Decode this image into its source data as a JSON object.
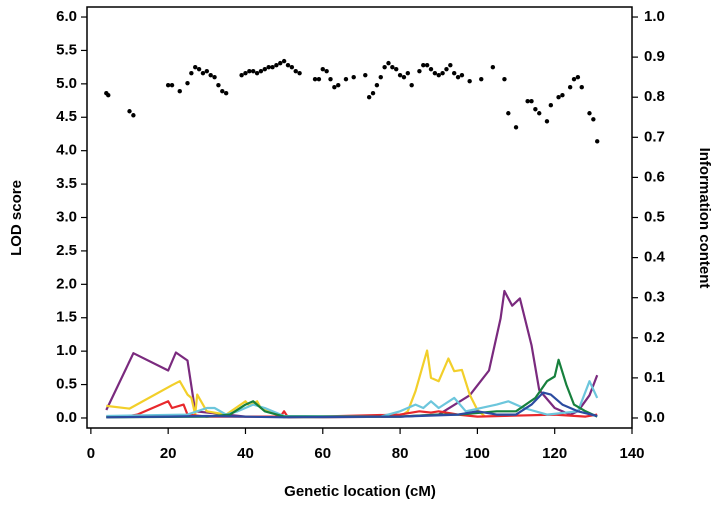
{
  "chart_data": {
    "type": "line",
    "xlabel": "Genetic location (cM)",
    "ylabel": "LOD score",
    "y2label": "Information content",
    "xlim": [
      -1,
      140
    ],
    "ylim": [
      -0.15,
      6.15
    ],
    "y2lim": [
      -0.025,
      1.025
    ],
    "xticks": [
      0,
      20,
      40,
      60,
      80,
      100,
      120,
      140
    ],
    "yticks": [
      {
        "value": 0,
        "label": "0.0"
      },
      {
        "value": 0.5,
        "label": "0.5"
      },
      {
        "value": 1,
        "label": "1.0"
      },
      {
        "value": 1.5,
        "label": "1.5"
      },
      {
        "value": 2,
        "label": "2.0"
      },
      {
        "value": 2.5,
        "label": "2.5"
      },
      {
        "value": 3,
        "label": "3.0"
      },
      {
        "value": 3.5,
        "label": "3.5"
      },
      {
        "value": 4,
        "label": "4.0"
      },
      {
        "value": 4.5,
        "label": "4.5"
      },
      {
        "value": 5,
        "label": "5.0"
      },
      {
        "value": 5.5,
        "label": "5.5"
      },
      {
        "value": 6,
        "label": "6.0"
      }
    ],
    "y2ticks": [
      {
        "value": 0,
        "label": "0.0"
      },
      0.1,
      0.2,
      0.3,
      0.4,
      0.5,
      0.6,
      0.7,
      0.8,
      0.9,
      {
        "value": 1,
        "label": "1.0"
      }
    ],
    "series": [
      {
        "color": "#7a2a7e",
        "x": [
          4,
          11,
          20,
          22,
          25,
          27,
          40,
          60,
          80,
          90,
          98,
          103,
          106,
          107,
          109,
          111,
          114,
          116,
          120,
          124,
          126,
          129,
          131
        ],
        "values": [
          0.12,
          0.97,
          0.71,
          0.98,
          0.86,
          0.1,
          0.02,
          0.01,
          0.02,
          0.05,
          0.34,
          0.71,
          1.49,
          1.9,
          1.68,
          1.79,
          1.09,
          0.42,
          0.15,
          0.05,
          0.1,
          0.34,
          0.64
        ]
      },
      {
        "color": "#f2cf2a",
        "x": [
          4,
          10,
          21,
          23,
          25,
          26,
          27,
          27.5,
          30,
          35,
          40,
          41,
          43,
          44,
          46,
          50,
          80,
          82,
          84,
          87,
          88,
          90,
          92.5,
          94,
          96,
          98,
          100,
          102
        ],
        "values": [
          0.18,
          0.14,
          0.49,
          0.55,
          0.35,
          0.3,
          0.05,
          0.35,
          0.1,
          0.05,
          0.25,
          0.18,
          0.25,
          0.15,
          0.1,
          0.01,
          0.02,
          0.1,
          0.4,
          1.01,
          0.6,
          0.55,
          0.89,
          0.7,
          0.72,
          0.35,
          0.12,
          0.02
        ]
      },
      {
        "color": "#e8282c",
        "x": [
          4,
          10,
          12,
          20,
          21,
          24,
          25,
          30,
          49,
          50,
          51,
          80,
          85,
          88,
          90,
          95,
          100,
          120,
          128,
          131
        ],
        "values": [
          0.02,
          0.03,
          0.05,
          0.25,
          0.15,
          0.2,
          0.05,
          0.02,
          0.02,
          0.1,
          0.01,
          0.05,
          0.1,
          0.08,
          0.1,
          0.05,
          0.02,
          0.05,
          0.02,
          0.05
        ]
      },
      {
        "color": "#6cc6dc",
        "x": [
          4,
          25,
          30,
          32,
          35,
          38,
          42,
          45,
          50,
          75,
          80,
          84,
          86,
          88,
          90,
          94,
          97,
          105,
          108,
          112,
          118,
          126,
          129,
          131
        ],
        "values": [
          0.03,
          0.05,
          0.15,
          0.15,
          0.05,
          0.1,
          0.2,
          0.15,
          0.03,
          0.02,
          0.1,
          0.2,
          0.15,
          0.25,
          0.15,
          0.3,
          0.1,
          0.2,
          0.25,
          0.15,
          0.05,
          0.1,
          0.55,
          0.3
        ]
      },
      {
        "color": "#17803d",
        "x": [
          4,
          30,
          36,
          40,
          42,
          45,
          50,
          80,
          90,
          95,
          105,
          110,
          115,
          118,
          120,
          121,
          123,
          125,
          128,
          131
        ],
        "values": [
          0.01,
          0.02,
          0.05,
          0.2,
          0.25,
          0.1,
          0.02,
          0.02,
          0.05,
          0.05,
          0.1,
          0.1,
          0.3,
          0.55,
          0.62,
          0.87,
          0.5,
          0.2,
          0.1,
          0.02
        ]
      },
      {
        "color": "#2b4ba0",
        "x": [
          4,
          20,
          30,
          50,
          80,
          95,
          100,
          105,
          110,
          114,
          117,
          119,
          122,
          126,
          131
        ],
        "values": [
          0.01,
          0.02,
          0.03,
          0.01,
          0.02,
          0.05,
          0.1,
          0.05,
          0.05,
          0.2,
          0.38,
          0.35,
          0.2,
          0.1,
          0.03
        ]
      },
      {
        "type": "scatter",
        "axis": "y2",
        "color": "#000000",
        "x": [
          4,
          4.5,
          10,
          11,
          20,
          21,
          23,
          25,
          26,
          27,
          28,
          29,
          30,
          31,
          32,
          33,
          34,
          35,
          39,
          40,
          41,
          42,
          43,
          44,
          45,
          46,
          47,
          48,
          49,
          50,
          51,
          52,
          53,
          54,
          58,
          59,
          60,
          61,
          62,
          63,
          64,
          66,
          68,
          71,
          72,
          73,
          74,
          75,
          76,
          77,
          78,
          79,
          80,
          81,
          82,
          83,
          85,
          86,
          87,
          88,
          89,
          90,
          91,
          92,
          93,
          94,
          95,
          96,
          98,
          101,
          104,
          107,
          108,
          110,
          113,
          114,
          115,
          116,
          118,
          119,
          121,
          122,
          124,
          125,
          126,
          127,
          129,
          130,
          131
        ],
        "values": [
          0.81,
          0.805,
          0.765,
          0.755,
          0.83,
          0.83,
          0.815,
          0.835,
          0.86,
          0.875,
          0.87,
          0.86,
          0.865,
          0.855,
          0.85,
          0.83,
          0.815,
          0.81,
          0.855,
          0.86,
          0.865,
          0.865,
          0.86,
          0.865,
          0.87,
          0.875,
          0.875,
          0.88,
          0.885,
          0.89,
          0.88,
          0.875,
          0.865,
          0.86,
          0.845,
          0.845,
          0.87,
          0.865,
          0.845,
          0.825,
          0.83,
          0.845,
          0.85,
          0.855,
          0.8,
          0.81,
          0.83,
          0.85,
          0.875,
          0.885,
          0.875,
          0.87,
          0.855,
          0.85,
          0.86,
          0.83,
          0.865,
          0.88,
          0.88,
          0.87,
          0.86,
          0.855,
          0.86,
          0.87,
          0.88,
          0.86,
          0.85,
          0.855,
          0.84,
          0.845,
          0.875,
          0.845,
          0.76,
          0.725,
          0.79,
          0.79,
          0.77,
          0.76,
          0.74,
          0.78,
          0.8,
          0.805,
          0.825,
          0.845,
          0.85,
          0.825,
          0.76,
          0.745,
          0.69
        ]
      }
    ]
  }
}
